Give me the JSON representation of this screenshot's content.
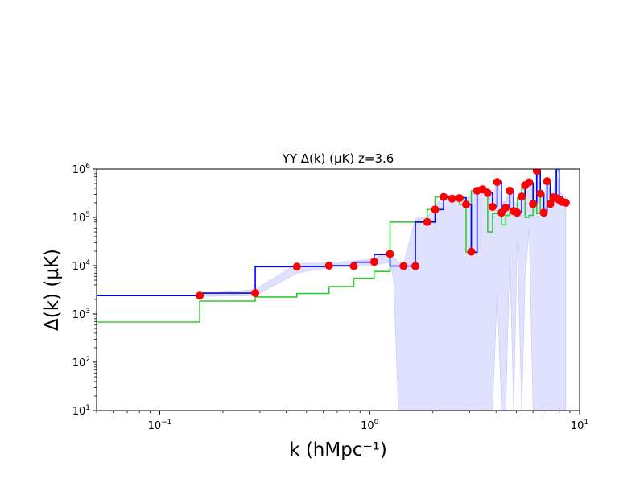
{
  "chart_data": {
    "type": "line",
    "title": "YY  Δ(k) (μK)  z=3.6",
    "xlabel": "k (hMpc⁻¹)",
    "ylabel": "Δ(k) (μK)",
    "xscale": "log",
    "yscale": "log",
    "xlim": [
      0.05,
      10
    ],
    "ylim": [
      10,
      1000000
    ],
    "grid": false,
    "x_ticks": [
      {
        "value": 0.1,
        "base": "10",
        "exp": "−1"
      },
      {
        "value": 1,
        "base": "10",
        "exp": "0"
      },
      {
        "value": 10,
        "base": "10",
        "exp": "1"
      }
    ],
    "y_ticks": [
      {
        "value": 10,
        "base": "10",
        "exp": "1"
      },
      {
        "value": 100,
        "base": "10",
        "exp": "2"
      },
      {
        "value": 1000,
        "base": "10",
        "exp": "3"
      },
      {
        "value": 10000,
        "base": "10",
        "exp": "4"
      },
      {
        "value": 100000,
        "base": "10",
        "exp": "5"
      },
      {
        "value": 1000000,
        "base": "10",
        "exp": "6"
      }
    ],
    "colors": {
      "measurement": "#0000ff",
      "noise": "#33cc33",
      "points": "#ff0000",
      "band": "#e0e0ff"
    },
    "series": [
      {
        "id": "measurement",
        "style": "step",
        "x": [
          0.05,
          0.155,
          0.285,
          0.45,
          0.64,
          0.84,
          1.05,
          1.25,
          1.45,
          1.65,
          1.88,
          2.05,
          2.25,
          2.47,
          2.68,
          2.88,
          3.05,
          3.25,
          3.45,
          3.65,
          3.85,
          4.05,
          4.25,
          4.45,
          4.65,
          4.85,
          5.05,
          5.3,
          5.5,
          5.75,
          6.0,
          6.25,
          6.5,
          6.75,
          7.0,
          7.25,
          7.5,
          7.75,
          8.0,
          8.25,
          8.6
        ],
        "y": [
          2400,
          2700,
          9500,
          9600,
          10000,
          11800,
          17000,
          9800,
          9800,
          80000,
          80000,
          145000,
          265000,
          250000,
          255000,
          185000,
          19000,
          355000,
          380000,
          330000,
          170000,
          540000,
          125000,
          160000,
          355000,
          135000,
          125000,
          270000,
          460000,
          520000,
          190000,
          930000,
          310000,
          125000,
          560000,
          210000,
          260000,
          1000000,
          260000,
          230000,
          200000
        ]
      },
      {
        "id": "noise",
        "style": "step",
        "x": [
          0.05,
          0.155,
          0.285,
          0.45,
          0.64,
          0.84,
          1.05,
          1.25,
          1.65,
          1.88,
          2.05,
          2.25,
          2.47,
          2.68,
          2.88,
          3.05,
          3.25,
          3.45,
          3.65,
          3.85,
          4.05,
          4.25,
          4.45,
          4.65,
          4.85,
          5.05,
          5.3,
          5.5,
          5.75,
          6.0,
          6.25,
          6.5,
          6.75,
          7.0,
          7.25,
          7.5,
          7.75,
          8.0,
          8.25
        ],
        "y": [
          680,
          1850,
          2250,
          2650,
          3700,
          5500,
          7600,
          80000,
          80000,
          145000,
          265000,
          250000,
          255000,
          185000,
          19000,
          355000,
          380000,
          330000,
          50000,
          120000,
          120000,
          70000,
          110000,
          130000,
          120000,
          250000,
          420000,
          100000,
          110000,
          190000,
          120000,
          300000,
          120000,
          480000,
          200000,
          250000,
          900000,
          250000,
          220000
        ]
      },
      {
        "id": "points",
        "style": "scatter",
        "x": [
          0.155,
          0.285,
          0.45,
          0.64,
          0.84,
          1.05,
          1.25,
          1.45,
          1.65,
          1.88,
          2.05,
          2.25,
          2.47,
          2.68,
          2.88,
          3.05,
          3.25,
          3.45,
          3.65,
          3.85,
          4.05,
          4.25,
          4.45,
          4.65,
          4.85,
          5.05,
          5.3,
          5.5,
          5.75,
          6.0,
          6.25,
          6.5,
          6.75,
          7.0,
          7.25,
          7.5,
          7.75,
          8.0,
          8.25,
          8.6
        ],
        "y": [
          2400,
          2700,
          9500,
          10000,
          9800,
          12000,
          17500,
          9800,
          9800,
          80000,
          145000,
          265000,
          245000,
          250000,
          185000,
          19500,
          355000,
          380000,
          320000,
          165000,
          540000,
          125000,
          160000,
          355000,
          135000,
          125000,
          270000,
          460000,
          530000,
          190000,
          920000,
          310000,
          125000,
          560000,
          190000,
          260000,
          250000,
          230000,
          210000,
          200000
        ]
      }
    ],
    "band": {
      "x": [
        0.155,
        0.285,
        0.45,
        0.64,
        0.84,
        1.05,
        1.25,
        1.3,
        1.37,
        1.45,
        1.65,
        1.88,
        2.05,
        2.25,
        2.47,
        2.68,
        2.88,
        3.05,
        3.25,
        3.45,
        3.65,
        3.85,
        4.05,
        4.25,
        4.45,
        4.65,
        4.85,
        5.05,
        5.3,
        5.5,
        5.75,
        6.0,
        6.25,
        6.5,
        6.75,
        7.0,
        7.25,
        7.5,
        7.75,
        8.0,
        8.25,
        8.6
      ],
      "upper": [
        2600,
        3200,
        11000,
        11500,
        12500,
        14000,
        20000,
        15000,
        12000,
        11000,
        95000,
        100000,
        170000,
        300000,
        290000,
        300000,
        230000,
        300000,
        420000,
        470000,
        400000,
        230000,
        650000,
        200000,
        220000,
        450000,
        200000,
        200000,
        350000,
        550000,
        620000,
        300000,
        1000000,
        420000,
        200000,
        650000,
        300000,
        350000,
        1000000,
        350000,
        300000,
        260000
      ],
      "lower": [
        2300,
        2400,
        7000,
        9200,
        9500,
        10000,
        12000,
        5000,
        10,
        10,
        10,
        10,
        10,
        10,
        10,
        10,
        10,
        10,
        10,
        10,
        10,
        10,
        3000,
        10,
        10,
        20000,
        10,
        35000,
        10,
        5000,
        60000,
        10,
        10,
        10,
        10,
        10,
        10,
        10,
        10,
        10,
        10,
        10
      ]
    }
  }
}
